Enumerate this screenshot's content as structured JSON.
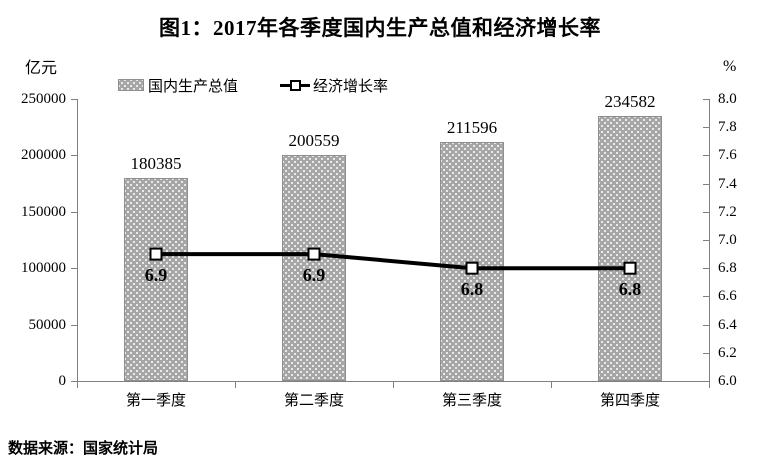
{
  "title": "图1：2017年各季度国内生产总值和经济增长率",
  "source": "数据来源：国家统计局",
  "legend": {
    "gdp_label": "国内生产总值",
    "growth_label": "经济增长率"
  },
  "chart_data": {
    "type": "bar+line",
    "title": "图1：2017年各季度国内生产总值和经济增长率",
    "categories": [
      "第一季度",
      "第二季度",
      "第三季度",
      "第四季度"
    ],
    "series": [
      {
        "name": "国内生产总值",
        "type": "bar",
        "axis": "left",
        "values": [
          180385,
          200559,
          211596,
          234582
        ],
        "labels": [
          "180385",
          "200559",
          "211596",
          "234582"
        ]
      },
      {
        "name": "经济增长率",
        "type": "line",
        "axis": "right",
        "values": [
          6.9,
          6.9,
          6.8,
          6.8
        ],
        "labels": [
          "6.9",
          "6.9",
          "6.8",
          "6.8"
        ]
      }
    ],
    "left_axis": {
      "unit": "亿元",
      "min": 0,
      "max": 250000,
      "ticks": [
        "0",
        "50000",
        "100000",
        "150000",
        "200000",
        "250000"
      ]
    },
    "right_axis": {
      "unit": "%",
      "min": 6.0,
      "max": 8.0,
      "ticks": [
        "6.0",
        "6.2",
        "6.4",
        "6.6",
        "6.8",
        "7.0",
        "7.2",
        "7.4",
        "7.6",
        "7.8",
        "8.0"
      ]
    },
    "grid": false,
    "legend_position": "top-inside"
  },
  "colors": {
    "bar_fill": "#a6a6a6",
    "bar_dot": "#ffffff",
    "bar_border": "#8f8f8f",
    "line": "#000000",
    "marker_fill": "#ffffff",
    "marker_border": "#000000",
    "axis": "#808080",
    "text": "#000000",
    "background": "#ffffff"
  }
}
